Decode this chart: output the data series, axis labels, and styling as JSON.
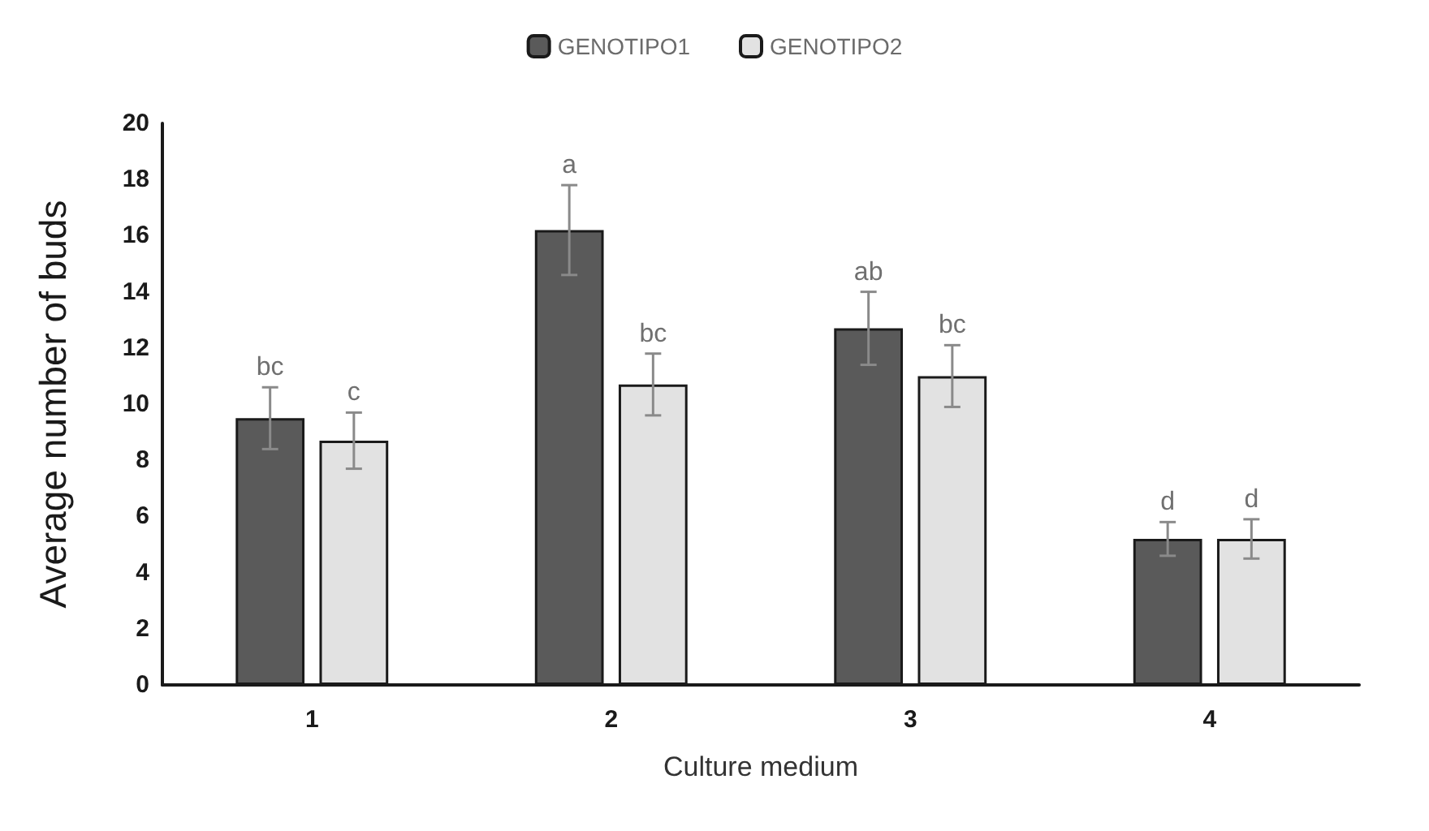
{
  "chart_data": {
    "type": "bar",
    "xlabel": "Culture medium",
    "ylabel": "Average number of buds",
    "categories": [
      "1",
      "2",
      "3",
      "4"
    ],
    "series": [
      {
        "name": "GENOTIPO1",
        "color": "#5a5a5a",
        "values": [
          9.5,
          16.2,
          12.7,
          5.2
        ],
        "errors": [
          1.1,
          1.6,
          1.3,
          0.6
        ],
        "value_labels": [
          "bc",
          "a",
          "ab",
          "d"
        ]
      },
      {
        "name": "GENOTIPO2",
        "color": "#e2e2e2",
        "values": [
          8.7,
          10.7,
          11.0,
          5.2
        ],
        "errors": [
          1.0,
          1.1,
          1.1,
          0.7
        ],
        "value_labels": [
          "c",
          "bc",
          "bc",
          "d"
        ]
      }
    ],
    "ylim": [
      0,
      20
    ],
    "yticks": [
      0,
      2,
      4,
      6,
      8,
      10,
      12,
      14,
      16,
      18,
      20
    ],
    "grid": false,
    "legend": "top"
  }
}
